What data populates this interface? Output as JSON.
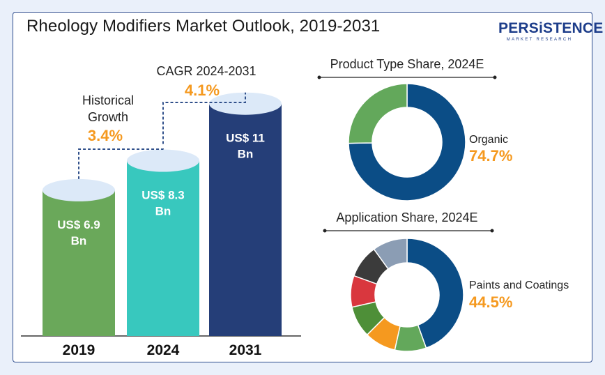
{
  "title": "Rheology Modifiers Market Outlook, 2019-2031",
  "logo": {
    "brand": "PERSiSTENCE",
    "tagline": "MARKET RESEARCH"
  },
  "colors": {
    "bar_2019": "#6aa85a",
    "bar_2024": "#38c8be",
    "bar_2031": "#253e78",
    "bar_top": "#dce9f8",
    "accent_orange": "#f5991f",
    "dash_line": "#2f4f8a",
    "donut_blue": "#0b4d86",
    "donut_green": "#63a85b"
  },
  "chart_data": [
    {
      "type": "bar",
      "title": "",
      "categories": [
        "2019",
        "2024",
        "2031"
      ],
      "values": [
        6.9,
        8.3,
        11
      ],
      "value_labels": [
        "US$ 6.9 Bn",
        "US$ 8.3 Bn",
        "US$ 11 Bn"
      ],
      "annotations": [
        {
          "label_lines": [
            "Historical",
            "Growth"
          ],
          "value": "3.4%"
        },
        {
          "label_lines": [
            "CAGR 2024-2031"
          ],
          "value": "4.1%"
        }
      ]
    },
    {
      "type": "pie",
      "title": "Product Type Share, 2024E",
      "slices": [
        {
          "value": 74.7,
          "color": "#0b4d86"
        },
        {
          "value": 25.3,
          "color": "#63a85b"
        }
      ],
      "callout": {
        "label": "Organic",
        "value": "74.7%"
      }
    },
    {
      "type": "pie",
      "title": "Application Share, 2024E",
      "slices": [
        {
          "value": 44.5,
          "color": "#0b4d86"
        },
        {
          "value": 9.0,
          "color": "#63a85b"
        },
        {
          "value": 9.0,
          "color": "#f5991f"
        },
        {
          "value": 9.0,
          "color": "#4e8f38"
        },
        {
          "value": 9.0,
          "color": "#d9373e"
        },
        {
          "value": 9.5,
          "color": "#3b3b3b"
        },
        {
          "value": 10.0,
          "color": "#8b9db4"
        }
      ],
      "callout": {
        "label": "Paints and Coatings",
        "value": "44.5%"
      }
    }
  ]
}
